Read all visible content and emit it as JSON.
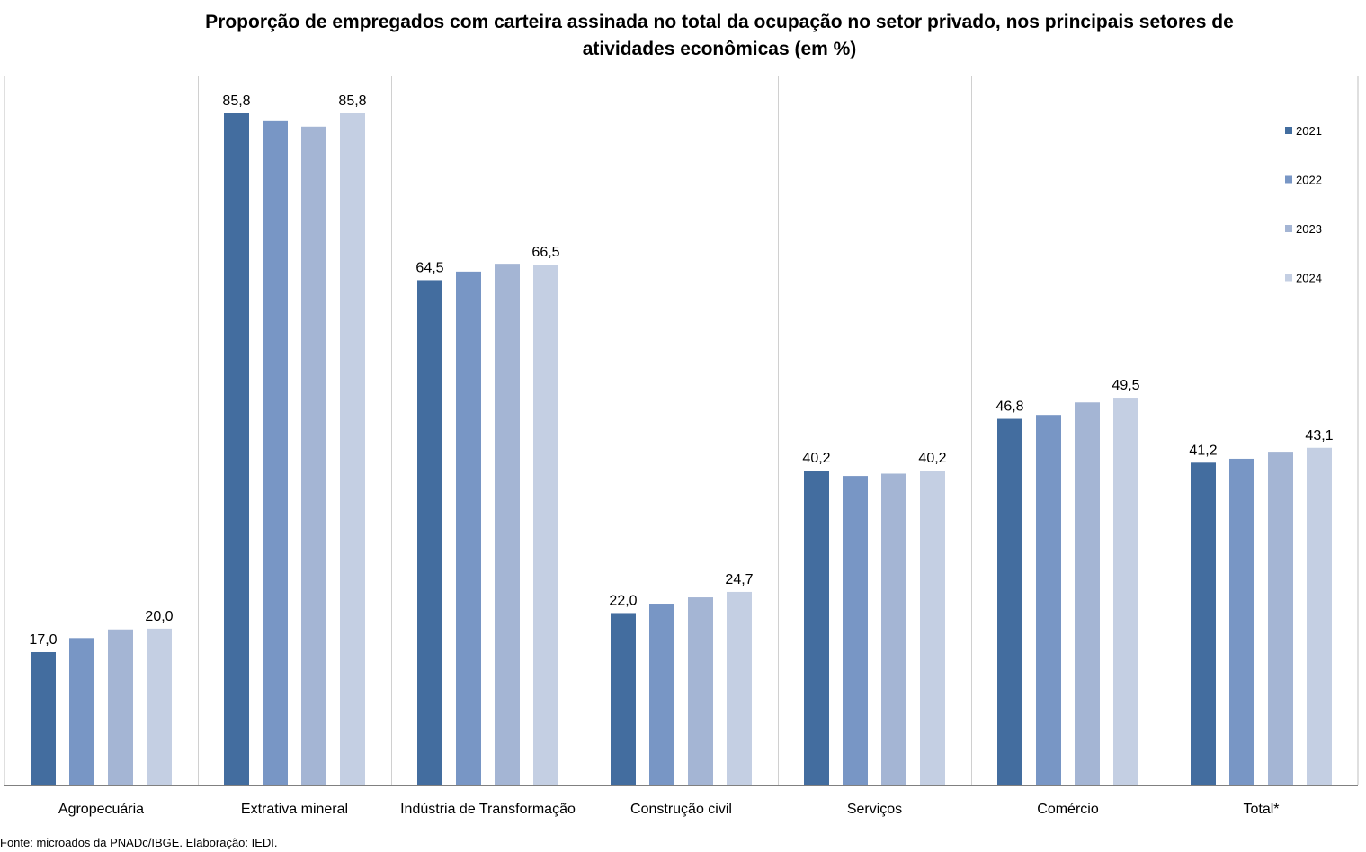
{
  "title_line1": "Proporção de empregados com carteira assinada no total da ocupação no setor privado, nos principais setores de",
  "title_line2": "atividades econômicas (em %)",
  "source": "Fonte: microados da PNADc/IBGE. Elaboração: IEDI.",
  "chart_data": {
    "type": "bar",
    "title": "Proporção de empregados com carteira assinada no total da ocupação no setor privado, nos principais setores de atividades econômicas (em %)",
    "categories": [
      "Agropecuária",
      "Extrativa mineral",
      "Indústria de Transformação",
      "Construção civil",
      "Serviços",
      "Comércio",
      "Total*"
    ],
    "series": [
      {
        "name": "2021",
        "color": "#436d9f",
        "values": [
          17.0,
          85.8,
          64.5,
          22.0,
          40.2,
          46.8,
          41.2
        ]
      },
      {
        "name": "2022",
        "color": "#7896c5",
        "values": [
          18.8,
          84.9,
          65.6,
          23.2,
          39.5,
          47.3,
          41.7
        ]
      },
      {
        "name": "2023",
        "color": "#a4b5d4",
        "values": [
          19.9,
          84.1,
          66.6,
          24.0,
          39.8,
          48.9,
          42.6
        ]
      },
      {
        "name": "2024",
        "color": "#c4cfe3",
        "values": [
          20.0,
          85.8,
          66.5,
          24.7,
          40.2,
          49.5,
          43.1
        ]
      }
    ],
    "data_labels": {
      "0": {
        "2021": "17,0",
        "2024": "20,0"
      },
      "1": {
        "2021": "85,8",
        "2024": "85,8"
      },
      "2": {
        "2021": "64,5",
        "2024": "66,5"
      },
      "3": {
        "2021": "22,0",
        "2024": "24,7"
      },
      "4": {
        "2021": "40,2",
        "2024": "40,2"
      },
      "5": {
        "2021": "46,8",
        "2024": "49,5"
      },
      "6": {
        "2021": "41,2",
        "2024": "43,1"
      }
    },
    "ylim": [
      0,
      90
    ],
    "grid": false,
    "legend_position": "right"
  }
}
